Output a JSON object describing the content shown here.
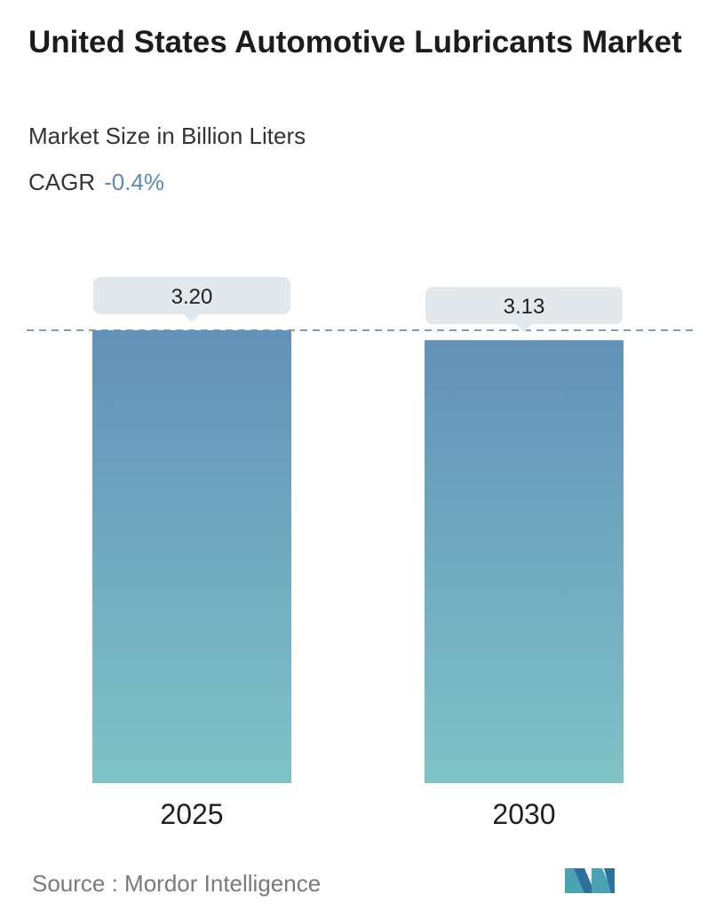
{
  "header": {
    "title": "United States Automotive Lubricants Market",
    "subtitle": "Market Size in Billion Liters",
    "cagr_label": "CAGR",
    "cagr_value": "-0.4%"
  },
  "chart_data": {
    "type": "bar",
    "categories": [
      "2025",
      "2030"
    ],
    "values": [
      3.2,
      3.13
    ],
    "value_labels": [
      "3.20",
      "3.13"
    ],
    "reference_line": "dashed at 2025 value",
    "colors": {
      "bar_top": "#6391b8",
      "bar_bottom": "#7ec3c7",
      "label_bg": "#e3e8ec",
      "dash": "#5b7ea0"
    }
  },
  "footer": {
    "source": "Source :  Mordor Intelligence",
    "logo": "mordor-intelligence-logo"
  }
}
